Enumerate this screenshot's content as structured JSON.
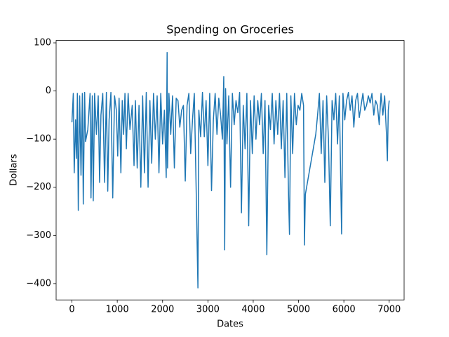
{
  "chart_data": {
    "type": "line",
    "title": "Spending on Groceries",
    "x_label": "Dates",
    "y_label": "Dollars",
    "x": [
      0,
      30,
      50,
      80,
      100,
      120,
      140,
      170,
      200,
      230,
      250,
      280,
      300,
      350,
      400,
      420,
      450,
      470,
      500,
      540,
      580,
      610,
      640,
      680,
      720,
      760,
      790,
      820,
      860,
      900,
      940,
      980,
      1010,
      1040,
      1080,
      1110,
      1140,
      1170,
      1200,
      1240,
      1280,
      1330,
      1370,
      1400,
      1440,
      1480,
      1520,
      1560,
      1600,
      1640,
      1680,
      1720,
      1760,
      1800,
      1840,
      1880,
      1920,
      1960,
      2000,
      2040,
      2080,
      2100,
      2110,
      2140,
      2180,
      2220,
      2260,
      2300,
      2340,
      2380,
      2420,
      2460,
      2500,
      2540,
      2580,
      2620,
      2660,
      2700,
      2740,
      2780,
      2800,
      2840,
      2880,
      2920,
      2960,
      3000,
      3040,
      3080,
      3120,
      3160,
      3200,
      3240,
      3280,
      3320,
      3350,
      3370,
      3390,
      3420,
      3460,
      3500,
      3540,
      3580,
      3620,
      3660,
      3700,
      3740,
      3780,
      3820,
      3860,
      3900,
      3940,
      3980,
      4020,
      4060,
      4100,
      4140,
      4180,
      4220,
      4260,
      4300,
      4340,
      4380,
      4420,
      4460,
      4500,
      4540,
      4580,
      4620,
      4660,
      4700,
      4740,
      4780,
      4800,
      4830,
      4870,
      4910,
      4950,
      4990,
      5030,
      5070,
      5110,
      5130,
      5150,
      5380,
      5420,
      5460,
      5500,
      5540,
      5580,
      5620,
      5660,
      5700,
      5740,
      5780,
      5820,
      5860,
      5900,
      5950,
      5980,
      6020,
      6060,
      6100,
      6140,
      6180,
      6220,
      6260,
      6300,
      6340,
      6380,
      6420,
      6460,
      6500,
      6540,
      6580,
      6620,
      6660,
      6700,
      6740,
      6780,
      6820,
      6860,
      6900,
      6940,
      6960,
      6980,
      7000
    ],
    "series": [
      {
        "color": "#1f77b4",
        "values": [
          -65,
          -5,
          -170,
          -60,
          -140,
          -5,
          -248,
          -10,
          -175,
          -5,
          -235,
          -3,
          -105,
          -80,
          -5,
          -222,
          -10,
          -228,
          -5,
          -90,
          -10,
          -190,
          -50,
          -5,
          -190,
          -3,
          -208,
          -60,
          -3,
          -222,
          -10,
          -40,
          -135,
          -15,
          -170,
          -20,
          -90,
          -5,
          -120,
          -5,
          -80,
          -30,
          -155,
          -20,
          -160,
          -30,
          -200,
          -10,
          -170,
          -3,
          -200,
          -20,
          -150,
          -5,
          -100,
          -10,
          -170,
          -5,
          -110,
          -40,
          -180,
          80,
          -160,
          -5,
          -90,
          -10,
          -160,
          -15,
          -20,
          -75,
          -40,
          -30,
          -187,
          -30,
          -5,
          -130,
          -60,
          -5,
          -200,
          -409,
          -40,
          -95,
          -3,
          -95,
          -20,
          -155,
          -5,
          -207,
          -60,
          -5,
          -90,
          -15,
          -50,
          -100,
          30,
          -330,
          5,
          -110,
          -10,
          -200,
          -5,
          -70,
          -20,
          -45,
          -3,
          -253,
          -30,
          -120,
          -5,
          -280,
          -20,
          -130,
          -10,
          -100,
          -20,
          -70,
          -5,
          -130,
          -20,
          -340,
          -30,
          -80,
          -5,
          -110,
          -20,
          -90,
          -5,
          -120,
          -20,
          -180,
          -5,
          -220,
          -298,
          -10,
          -130,
          -5,
          -70,
          -30,
          -40,
          -5,
          -30,
          -320,
          -215,
          -90,
          -50,
          -5,
          -130,
          -20,
          -190,
          -10,
          -100,
          -280,
          -20,
          -60,
          -5,
          -110,
          -10,
          -297,
          -5,
          -60,
          -20,
          -3,
          -40,
          -10,
          -75,
          -20,
          -5,
          -55,
          -30,
          -5,
          -40,
          -30,
          -10,
          -25,
          -5,
          -50,
          -20,
          -30,
          -70,
          -5,
          -50,
          -10,
          -90,
          -145,
          -40,
          -20
        ]
      }
    ],
    "xlim": [
      -349,
      7329
    ],
    "ylim": [
      -434,
      105
    ],
    "xticks": [
      0,
      1000,
      2000,
      3000,
      4000,
      5000,
      6000,
      7000
    ],
    "yticks": [
      {
        "value": -400,
        "label": "−400"
      },
      {
        "value": -300,
        "label": "−300"
      },
      {
        "value": -200,
        "label": "−200"
      },
      {
        "value": -100,
        "label": "−100"
      },
      0,
      100
    ]
  }
}
